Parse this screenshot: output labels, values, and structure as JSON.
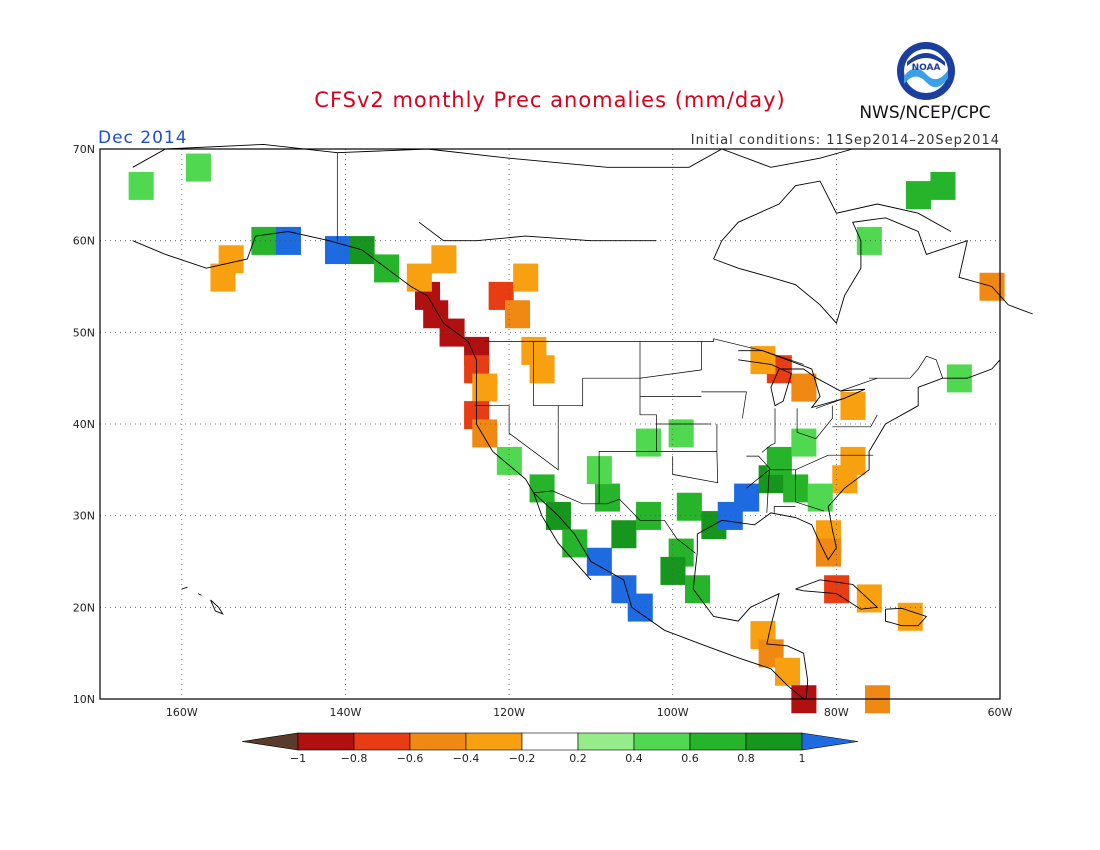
{
  "header": {
    "title": "CFSv2 monthly Prec anomalies (mm/day)",
    "month": "Dec 2014",
    "initial_conditions": "Initial conditions: 11Sep2014–20Sep2014",
    "agency": "NWS/NCEP/CPC",
    "logo_text": "NOAA"
  },
  "map": {
    "lat_range": [
      10,
      70
    ],
    "lon_range": [
      -170,
      -60
    ],
    "lat_ticks": [
      "70N",
      "60N",
      "50N",
      "40N",
      "30N",
      "20N",
      "10N"
    ],
    "lon_ticks": [
      "160W",
      "140W",
      "120W",
      "100W",
      "80W",
      "60W"
    ],
    "lat_tick_values": [
      70,
      60,
      50,
      40,
      30,
      20,
      10
    ],
    "lon_tick_values": [
      -160,
      -140,
      -120,
      -100,
      -80,
      -60
    ]
  },
  "colorbar": {
    "labels": [
      "−1",
      "−0.8",
      "−0.6",
      "−0.4",
      "−0.2",
      "0.2",
      "0.4",
      "0.6",
      "0.8",
      "1"
    ],
    "colors": [
      "#5a3a2a",
      "#b01010",
      "#e83c14",
      "#f08814",
      "#f8a010",
      "#ffffff",
      "#96ec8a",
      "#50d850",
      "#26b42a",
      "#16961c",
      "#1e6ae0"
    ]
  },
  "anomalies": [
    {
      "lat": 54,
      "lon": -130,
      "v": -1.0
    },
    {
      "lat": 52,
      "lon": -129,
      "v": -1.0
    },
    {
      "lat": 50,
      "lon": -127,
      "v": -1.0
    },
    {
      "lat": 48,
      "lon": -124,
      "v": -1.0
    },
    {
      "lat": 56,
      "lon": -131,
      "v": -0.4
    },
    {
      "lat": 58,
      "lon": -128,
      "v": -0.3
    },
    {
      "lat": 46,
      "lon": -124,
      "v": -0.8
    },
    {
      "lat": 44,
      "lon": -123,
      "v": -0.4
    },
    {
      "lat": 41,
      "lon": -124,
      "v": -0.8
    },
    {
      "lat": 39,
      "lon": -123,
      "v": -0.6
    },
    {
      "lat": 54,
      "lon": -121,
      "v": -0.8
    },
    {
      "lat": 52,
      "lon": -119,
      "v": -0.6
    },
    {
      "lat": 56,
      "lon": -118,
      "v": -0.3
    },
    {
      "lat": 48,
      "lon": -117,
      "v": -0.4
    },
    {
      "lat": 46,
      "lon": -116,
      "v": -0.3
    },
    {
      "lat": 46,
      "lon": -87,
      "v": -0.8
    },
    {
      "lat": 44,
      "lon": -84,
      "v": -0.6
    },
    {
      "lat": 47,
      "lon": -89,
      "v": -0.4
    },
    {
      "lat": 34,
      "lon": -79,
      "v": -0.4
    },
    {
      "lat": 36,
      "lon": -78,
      "v": -0.3
    },
    {
      "lat": 28,
      "lon": -81,
      "v": -0.4
    },
    {
      "lat": 26,
      "lon": -81,
      "v": -0.6
    },
    {
      "lat": 42,
      "lon": -78,
      "v": -0.3
    },
    {
      "lat": 22,
      "lon": -80,
      "v": -0.8
    },
    {
      "lat": 21,
      "lon": -76,
      "v": -0.4
    },
    {
      "lat": 19,
      "lon": -71,
      "v": -0.3
    },
    {
      "lat": 17,
      "lon": -89,
      "v": -0.4
    },
    {
      "lat": 15,
      "lon": -88,
      "v": -0.6
    },
    {
      "lat": 13,
      "lon": -86,
      "v": -0.3
    },
    {
      "lat": 10,
      "lon": -84,
      "v": -1.0
    },
    {
      "lat": 10,
      "lon": -75,
      "v": -0.6
    },
    {
      "lat": 55,
      "lon": -61,
      "v": -0.6
    },
    {
      "lat": 58,
      "lon": -154,
      "v": -0.3
    },
    {
      "lat": 56,
      "lon": -155,
      "v": -0.4
    },
    {
      "lat": 60,
      "lon": -150,
      "v": 0.6
    },
    {
      "lat": 60,
      "lon": -147,
      "v": 1.0
    },
    {
      "lat": 59,
      "lon": -141,
      "v": 1.0
    },
    {
      "lat": 59,
      "lon": -138,
      "v": 0.8
    },
    {
      "lat": 57,
      "lon": -135,
      "v": 0.6
    },
    {
      "lat": 66,
      "lon": -165,
      "v": 0.4
    },
    {
      "lat": 68,
      "lon": -158,
      "v": 0.4
    },
    {
      "lat": 36,
      "lon": -120,
      "v": 0.4
    },
    {
      "lat": 33,
      "lon": -116,
      "v": 0.6
    },
    {
      "lat": 30,
      "lon": -114,
      "v": 0.8
    },
    {
      "lat": 27,
      "lon": -112,
      "v": 0.6
    },
    {
      "lat": 25,
      "lon": -109,
      "v": 1.0
    },
    {
      "lat": 22,
      "lon": -106,
      "v": 1.0
    },
    {
      "lat": 20,
      "lon": -104,
      "v": 1.0
    },
    {
      "lat": 28,
      "lon": -106,
      "v": 0.8
    },
    {
      "lat": 30,
      "lon": -103,
      "v": 0.6
    },
    {
      "lat": 32,
      "lon": -108,
      "v": 0.6
    },
    {
      "lat": 35,
      "lon": -109,
      "v": 0.4
    },
    {
      "lat": 38,
      "lon": -103,
      "v": 0.4
    },
    {
      "lat": 39,
      "lon": -99,
      "v": 0.4
    },
    {
      "lat": 31,
      "lon": -98,
      "v": 0.6
    },
    {
      "lat": 29,
      "lon": -95,
      "v": 0.8
    },
    {
      "lat": 30,
      "lon": -93,
      "v": 1.0
    },
    {
      "lat": 32,
      "lon": -91,
      "v": 1.0
    },
    {
      "lat": 34,
      "lon": -88,
      "v": 0.8
    },
    {
      "lat": 36,
      "lon": -87,
      "v": 0.6
    },
    {
      "lat": 38,
      "lon": -84,
      "v": 0.4
    },
    {
      "lat": 33,
      "lon": -85,
      "v": 0.6
    },
    {
      "lat": 32,
      "lon": -82,
      "v": 0.4
    },
    {
      "lat": 26,
      "lon": -99,
      "v": 0.6
    },
    {
      "lat": 24,
      "lon": -100,
      "v": 0.8
    },
    {
      "lat": 22,
      "lon": -97,
      "v": 0.6
    },
    {
      "lat": 60,
      "lon": -76,
      "v": 0.4
    },
    {
      "lat": 65,
      "lon": -70,
      "v": 0.6
    },
    {
      "lat": 66,
      "lon": -67,
      "v": 0.6
    },
    {
      "lat": 45,
      "lon": -65,
      "v": 0.4
    }
  ]
}
